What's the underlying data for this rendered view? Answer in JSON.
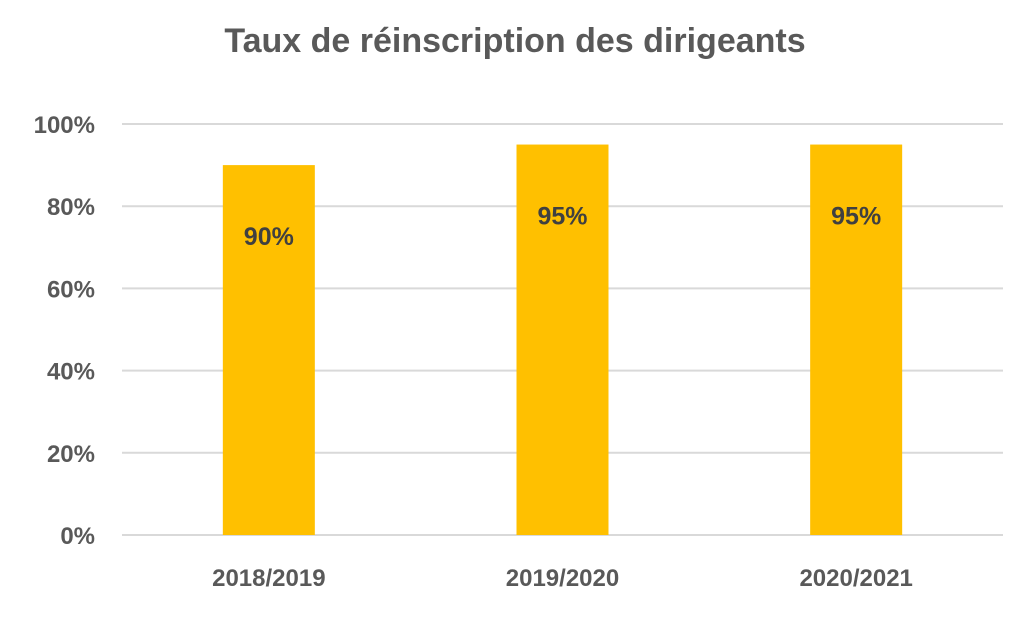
{
  "chart_data": {
    "type": "bar",
    "title": "Taux de réinscription des dirigeants",
    "categories": [
      "2018/2019",
      "2019/2020",
      "2020/2021"
    ],
    "values": [
      90,
      95,
      95
    ],
    "data_labels": [
      "90%",
      "95%",
      "95%"
    ],
    "ylim": [
      0,
      100
    ],
    "yticks": [
      0,
      20,
      40,
      60,
      80,
      100
    ],
    "ytick_labels": [
      "0%",
      "20%",
      "40%",
      "60%",
      "80%",
      "100%"
    ],
    "xlabel": "",
    "ylabel": "",
    "grid": true,
    "legend": "none",
    "colors": {
      "bar": "#FFC000",
      "grid": "#D9D9D9",
      "text": "#595959",
      "label": "#404040"
    }
  }
}
